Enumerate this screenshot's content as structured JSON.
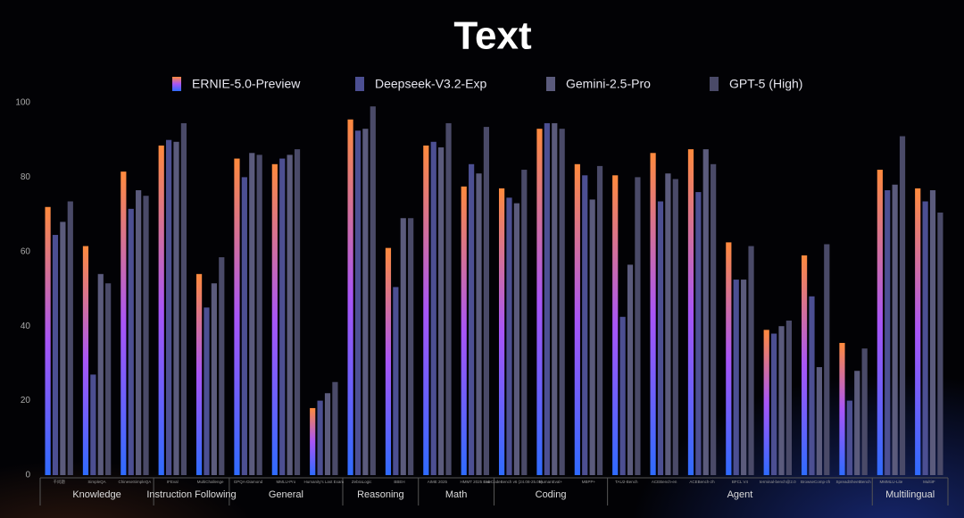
{
  "chart_data": {
    "type": "grouped-bar",
    "title": "Text",
    "groups": [
      {
        "name": "Knowledge",
        "categories": [
          "千问题",
          "SimpleQA",
          "ChineseSimpleQA"
        ]
      },
      {
        "name": "Instruction Following",
        "categories": [
          "IFEval",
          "MultiChallenge"
        ]
      },
      {
        "name": "General",
        "categories": [
          "GPQA-Diamond",
          "MMLU-Pro",
          "Humanity's Last Exam"
        ]
      },
      {
        "name": "Reasoning",
        "categories": [
          "ZebraLogic",
          "BBEH"
        ]
      },
      {
        "name": "Math",
        "categories": [
          "AIME 2025",
          "HMMT 2025 Feb"
        ]
      },
      {
        "name": "Coding",
        "categories": [
          "LiveCodeBench v6 (24.08-25.05)",
          "HumanEval+",
          "MBPP+"
        ]
      },
      {
        "name": "Agent",
        "categories": [
          "TAU2-Bench",
          "ACEBench-en",
          "ACEBench-zh",
          "BFCL V4",
          "terminal-bench@2.0",
          "BrowseComp-zh",
          "SpreadSheetBench"
        ]
      },
      {
        "name": "Multilingual",
        "categories": [
          "MMMLU-Lite",
          "MultiIF"
        ]
      }
    ],
    "series": [
      {
        "name": "ERNIE-5.0-Preview",
        "color": "#b45ae6",
        "gradient": [
          "#ff8a3d",
          "#a855f7",
          "#2f6bff"
        ],
        "values": [
          72,
          61.5,
          81.5,
          88.5,
          54,
          85,
          83.5,
          18,
          95.5,
          61,
          88.5,
          77.5,
          77,
          93,
          83.5,
          80.5,
          86.5,
          87.5,
          62.5,
          39,
          59,
          35.5,
          82,
          77
        ]
      },
      {
        "name": "Deepseek-V3.2-Exp",
        "color": "#4c4f92",
        "values": [
          64.5,
          27,
          71.5,
          90,
          45,
          80,
          85,
          20,
          92.5,
          50.5,
          89.5,
          83.5,
          74.5,
          94.5,
          80.5,
          42.5,
          73.5,
          76,
          52.5,
          38,
          48,
          20,
          76.5,
          73.5
        ]
      },
      {
        "name": "Gemini-2.5-Pro",
        "color": "#5b5b7c",
        "values": [
          68,
          54,
          76.5,
          89.5,
          51.5,
          86.5,
          86,
          22,
          93,
          69,
          88,
          81,
          73,
          94.5,
          74,
          56.5,
          81,
          87.5,
          52.5,
          40,
          29,
          28,
          78,
          76.5
        ]
      },
      {
        "name": "GPT-5 (High)",
        "color": "#4a4a68",
        "values": [
          73.5,
          51.5,
          75,
          94.5,
          58.5,
          86,
          87.5,
          25,
          99,
          69,
          94.5,
          93.5,
          82,
          93,
          83,
          80,
          79.5,
          83.5,
          61.5,
          41.5,
          62,
          34,
          91,
          70.5
        ]
      }
    ],
    "ylim": [
      0,
      100
    ],
    "yticks": [
      0,
      20,
      40,
      60,
      80,
      100
    ]
  }
}
